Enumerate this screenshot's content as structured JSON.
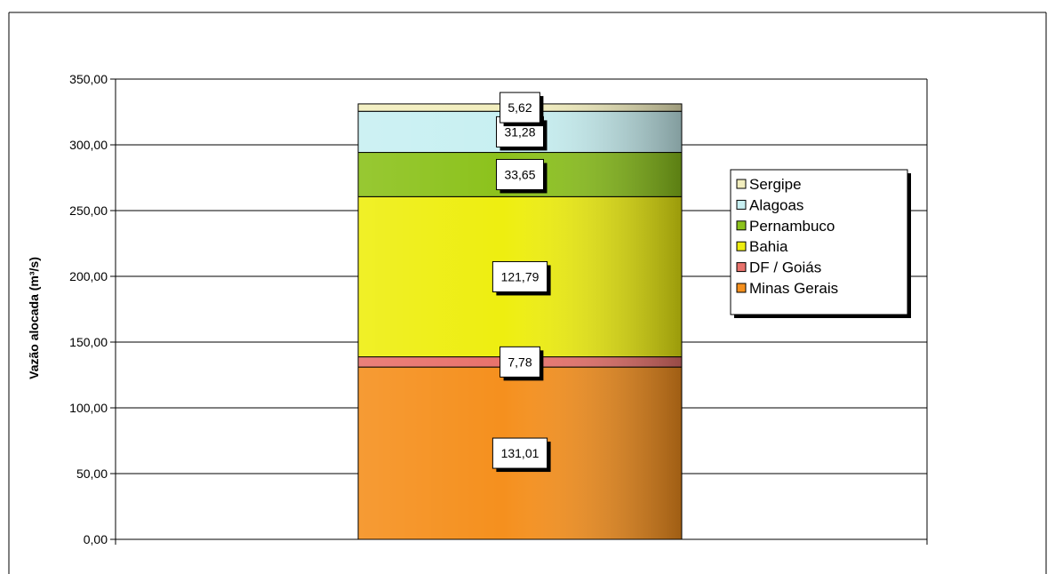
{
  "chart_data": {
    "type": "bar",
    "stacked": true,
    "ylabel": "Vazão alocada (m³/s)",
    "xlabel": "",
    "ylim": [
      0,
      350
    ],
    "y_ticks": [
      "0,00",
      "50,00",
      "100,00",
      "150,00",
      "200,00",
      "250,00",
      "300,00",
      "350,00"
    ],
    "y_tick_values": [
      0,
      50,
      100,
      150,
      200,
      250,
      300,
      350
    ],
    "grid": true,
    "legend_position": "right",
    "series": [
      {
        "name": "Minas Gerais",
        "value": 131.01,
        "label": "131,01",
        "color": "#f5901e"
      },
      {
        "name": "DF / Goiás",
        "value": 7.78,
        "label": "7,78",
        "color": "#e8726c"
      },
      {
        "name": "Bahia",
        "value": 121.79,
        "label": "121,79",
        "color": "#eeee10"
      },
      {
        "name": "Pernambuco",
        "value": 33.65,
        "label": "33,65",
        "color": "#8cc21c"
      },
      {
        "name": "Alagoas",
        "value": 31.28,
        "label": "31,28",
        "color": "#c8f0f2"
      },
      {
        "name": "Sergipe",
        "value": 5.62,
        "label": "5,62",
        "color": "#f2eebe"
      }
    ]
  }
}
